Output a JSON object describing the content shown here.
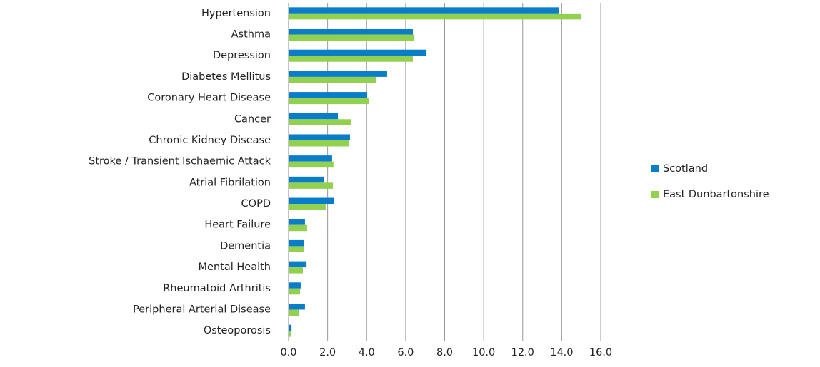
{
  "chart_data": {
    "type": "hbar",
    "categories": [
      "Hypertension",
      "Asthma",
      "Depression",
      "Diabetes Mellitus",
      "Coronary Heart Disease",
      "Cancer",
      "Chronic Kidney Disease",
      "Stroke / Transient Ischaemic Attack",
      "Atrial Fibrilation",
      "COPD",
      "Heart Failure",
      "Dementia",
      "Mental Health",
      "Rheumatoid Arthritis",
      "Peripheral Arterial Disease",
      "Osteoporosis"
    ],
    "series": [
      {
        "name": "Scotland",
        "color": "#0a7dc8",
        "values": [
          13.85,
          6.37,
          7.07,
          5.05,
          4.03,
          2.53,
          3.15,
          2.23,
          1.8,
          2.34,
          0.84,
          0.8,
          0.92,
          0.62,
          0.84,
          0.15
        ]
      },
      {
        "name": "East Dunbartonshire",
        "color": "#92d050",
        "values": [
          15.0,
          6.45,
          6.37,
          4.5,
          4.1,
          3.22,
          3.08,
          2.3,
          2.27,
          1.9,
          0.95,
          0.8,
          0.73,
          0.59,
          0.55,
          0.15
        ]
      }
    ],
    "xlim": [
      0,
      16
    ],
    "xticks": [
      {
        "value": 0,
        "label": "0.0"
      },
      {
        "value": 2,
        "label": "2.0"
      },
      {
        "value": 4,
        "label": "4.0"
      },
      {
        "value": 6,
        "label": "6.0"
      },
      {
        "value": 8,
        "label": "8.0"
      },
      {
        "value": 10,
        "label": "10.0"
      },
      {
        "value": 12,
        "label": "12.0"
      },
      {
        "value": 14,
        "label": "14.0"
      },
      {
        "value": 16,
        "label": "16.0"
      }
    ],
    "grid": true,
    "legend": "right"
  }
}
